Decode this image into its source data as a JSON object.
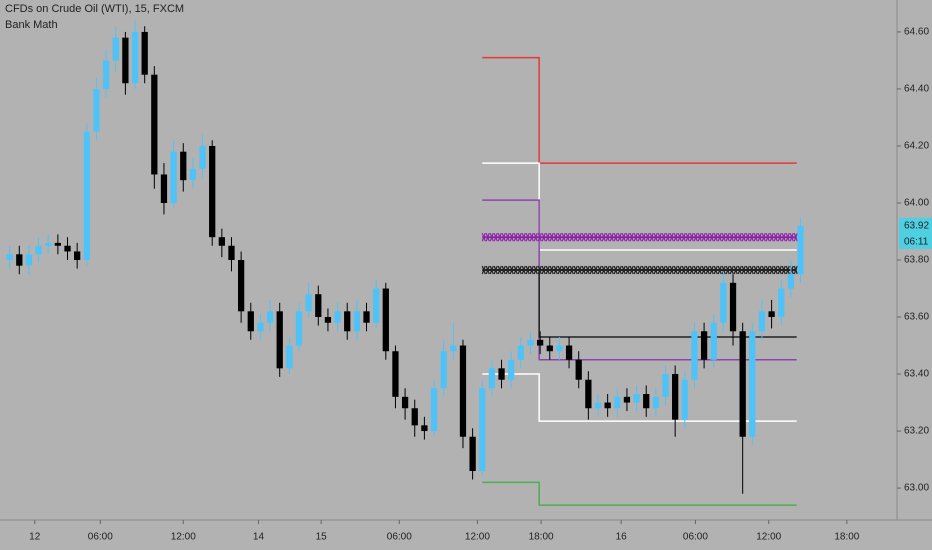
{
  "chart_data": {
    "type": "candlestick",
    "title": "CFDs on Crude Oil (WTI), 15, FXCM",
    "subtitle": "Bank Math",
    "xlim": [
      0,
      93
    ],
    "ylim": [
      62.888,
      64.712
    ],
    "xticks": [
      {
        "value": 3.6,
        "label": "12"
      },
      {
        "value": 10.4,
        "label": "06:00"
      },
      {
        "value": 19,
        "label": "12:00"
      },
      {
        "value": 26.8,
        "label": "14"
      },
      {
        "value": 33.3,
        "label": "15"
      },
      {
        "value": 41.4,
        "label": "06:00"
      },
      {
        "value": 49.5,
        "label": "12:00"
      },
      {
        "value": 56.1,
        "label": "18:00"
      },
      {
        "value": 64.4,
        "label": "16"
      },
      {
        "value": 72.1,
        "label": "06:00"
      },
      {
        "value": 79.7,
        "label": "12:00"
      },
      {
        "value": 87.8,
        "label": "18:00"
      }
    ],
    "yticks": [
      {
        "value": 63.0,
        "label": "63.00"
      },
      {
        "value": 63.2,
        "label": "63.20"
      },
      {
        "value": 63.4,
        "label": "63.40"
      },
      {
        "value": 63.6,
        "label": "63.60"
      },
      {
        "value": 63.8,
        "label": "63.80"
      },
      {
        "value": 64.0,
        "label": "64.00"
      },
      {
        "value": 64.2,
        "label": "64.20"
      },
      {
        "value": 64.4,
        "label": "64.40"
      },
      {
        "value": 64.6,
        "label": "64.60"
      }
    ],
    "up_color": "#4fc3f7",
    "down_color": "#000000",
    "candles": {
      "x": [
        1,
        2,
        3,
        4,
        5,
        6,
        7,
        8,
        9,
        10,
        11,
        12,
        13,
        14,
        15,
        16,
        17,
        18,
        19,
        20,
        21,
        22,
        23,
        24,
        25,
        26,
        27,
        28,
        29,
        30,
        31,
        32,
        33,
        34,
        35,
        36,
        37,
        38,
        39,
        40,
        41,
        42,
        43,
        44,
        45,
        46,
        47,
        48,
        49,
        50,
        51,
        52,
        53,
        54,
        55,
        56,
        57,
        58,
        59,
        60,
        61,
        62,
        63,
        64,
        65,
        66,
        67,
        68,
        69,
        70,
        71,
        72,
        73,
        74,
        75,
        76,
        77,
        78,
        79,
        80,
        81,
        82,
        83
      ],
      "open": [
        63.8,
        63.82,
        63.78,
        63.82,
        63.85,
        63.86,
        63.85,
        63.83,
        63.8,
        64.25,
        64.4,
        64.5,
        64.58,
        64.42,
        64.6,
        64.45,
        64.1,
        64.0,
        64.18,
        64.08,
        64.12,
        64.2,
        63.88,
        63.85,
        63.8,
        63.62,
        63.55,
        63.58,
        63.62,
        63.42,
        63.5,
        63.62,
        63.68,
        63.6,
        63.58,
        63.62,
        63.55,
        63.62,
        63.58,
        63.7,
        63.48,
        63.32,
        63.28,
        63.22,
        63.2,
        63.35,
        63.48,
        63.5,
        63.18,
        63.06,
        63.35,
        63.42,
        63.38,
        63.45,
        63.5,
        63.52,
        63.5,
        63.48,
        63.5,
        63.45,
        63.38,
        63.28,
        63.3,
        63.28,
        63.32,
        63.3,
        63.33,
        63.28,
        63.32,
        63.4,
        63.24,
        63.38,
        63.55,
        63.45,
        63.58,
        63.72,
        63.55,
        63.18,
        63.55,
        63.62,
        63.6,
        63.7,
        63.75
      ],
      "high": [
        63.85,
        63.85,
        63.85,
        63.88,
        63.89,
        63.89,
        63.88,
        63.86,
        64.28,
        64.44,
        64.54,
        64.62,
        64.6,
        64.64,
        64.62,
        64.48,
        64.14,
        64.22,
        64.21,
        64.16,
        64.24,
        64.22,
        63.91,
        63.88,
        63.83,
        63.65,
        63.61,
        63.66,
        63.65,
        63.53,
        63.65,
        63.72,
        63.71,
        63.63,
        63.65,
        63.65,
        63.66,
        63.65,
        63.73,
        63.72,
        63.5,
        63.35,
        63.31,
        63.25,
        63.38,
        63.52,
        63.58,
        63.52,
        63.21,
        63.38,
        63.45,
        63.45,
        63.48,
        63.53,
        63.55,
        63.55,
        63.53,
        63.53,
        63.53,
        63.48,
        63.41,
        63.33,
        63.33,
        63.35,
        63.35,
        63.36,
        63.36,
        63.35,
        63.43,
        63.43,
        63.41,
        63.58,
        63.58,
        63.61,
        63.76,
        63.75,
        63.58,
        63.58,
        63.66,
        63.66,
        63.73,
        63.8,
        63.95
      ],
      "low": [
        63.77,
        63.75,
        63.75,
        63.79,
        63.82,
        63.82,
        63.8,
        63.77,
        63.78,
        64.22,
        64.37,
        64.46,
        64.38,
        64.4,
        64.42,
        64.05,
        63.96,
        63.98,
        64.04,
        64.05,
        64.09,
        63.85,
        63.81,
        63.76,
        63.58,
        63.52,
        63.52,
        63.55,
        63.39,
        63.4,
        63.48,
        63.6,
        63.57,
        63.55,
        63.55,
        63.52,
        63.52,
        63.55,
        63.56,
        63.45,
        63.28,
        63.24,
        63.18,
        63.17,
        63.18,
        63.32,
        63.45,
        63.14,
        63.03,
        63.04,
        63.32,
        63.35,
        63.35,
        63.42,
        63.47,
        63.47,
        63.45,
        63.45,
        63.42,
        63.35,
        63.24,
        63.25,
        63.25,
        63.25,
        63.27,
        63.27,
        63.25,
        63.25,
        63.29,
        63.18,
        63.21,
        63.35,
        63.42,
        63.42,
        63.55,
        63.5,
        62.98,
        63.15,
        63.52,
        63.56,
        63.57,
        63.67,
        63.72
      ],
      "close": [
        63.82,
        63.78,
        63.82,
        63.85,
        63.86,
        63.85,
        63.83,
        63.8,
        64.25,
        64.4,
        64.5,
        64.58,
        64.42,
        64.6,
        64.45,
        64.1,
        64.0,
        64.18,
        64.08,
        64.12,
        64.2,
        63.88,
        63.85,
        63.8,
        63.62,
        63.55,
        63.58,
        63.62,
        63.42,
        63.5,
        63.62,
        63.68,
        63.6,
        63.58,
        63.62,
        63.55,
        63.62,
        63.58,
        63.7,
        63.48,
        63.32,
        63.28,
        63.22,
        63.2,
        63.35,
        63.48,
        63.5,
        63.18,
        63.06,
        63.35,
        63.42,
        63.38,
        63.45,
        63.5,
        63.52,
        63.5,
        63.48,
        63.5,
        63.45,
        63.38,
        63.28,
        63.3,
        63.28,
        63.32,
        63.3,
        63.33,
        63.28,
        63.32,
        63.4,
        63.24,
        63.38,
        63.55,
        63.45,
        63.58,
        63.72,
        63.55,
        63.18,
        63.55,
        63.62,
        63.6,
        63.7,
        63.75,
        63.92
      ]
    },
    "levels": [
      {
        "color": "#e53935",
        "style": "line",
        "x": [
          50,
          55.9,
          55.9,
          82.6
        ],
        "values": [
          64.51,
          64.51,
          64.14,
          64.14
        ]
      },
      {
        "color": "#ffffff",
        "style": "line",
        "x": [
          50,
          55.9,
          55.9,
          82.6
        ],
        "values": [
          64.14,
          64.14,
          63.835,
          63.835
        ]
      },
      {
        "color": "#8e44ad",
        "style": "line",
        "x": [
          50,
          55.9,
          55.9,
          82.6
        ],
        "values": [
          64.01,
          64.01,
          63.45,
          63.45
        ]
      },
      {
        "color": "#8e24aa",
        "style": "cross",
        "x": [
          50,
          82.6
        ],
        "values": [
          63.88,
          63.88
        ]
      },
      {
        "color": "#222222",
        "style": "cross",
        "x": [
          50,
          82.6
        ],
        "values": [
          63.765,
          63.765
        ]
      },
      {
        "color": "#222222",
        "style": "line",
        "x": [
          55.9,
          55.9,
          82.6
        ],
        "values": [
          63.765,
          63.53,
          63.53
        ]
      },
      {
        "color": "#ffffff",
        "style": "line",
        "x": [
          50,
          55.9,
          55.9,
          82.6
        ],
        "values": [
          63.4,
          63.4,
          63.235,
          63.235
        ]
      },
      {
        "color": "#4caf50",
        "style": "line",
        "x": [
          50,
          55.9,
          55.9,
          82.6
        ],
        "values": [
          63.02,
          63.02,
          62.94,
          62.94
        ]
      }
    ],
    "last_price": 63.92,
    "countdown": "06:11",
    "tag_color": "#4dd0e1"
  }
}
